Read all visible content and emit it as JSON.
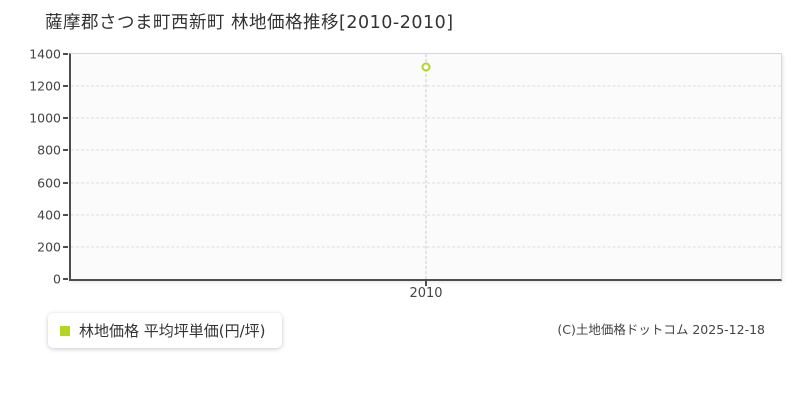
{
  "title": "薩摩郡さつま町西新町 林地価格推移[2010-2010]",
  "legend": {
    "label": "林地価格 平均坪単価(円/坪)",
    "marker_color": "#b2d51e"
  },
  "copyright": "(C)土地価格ドットコム 2025-12-18",
  "chart_data": {
    "type": "scatter",
    "title": "薩摩郡さつま町西新町 林地価格推移[2010-2010]",
    "categories": [
      "2010"
    ],
    "series": [
      {
        "name": "林地価格 平均坪単価(円/坪)",
        "values": [
          1320
        ],
        "color": "#b2d51e",
        "marker": "hollow-circle"
      }
    ],
    "ylim": [
      0,
      1400
    ],
    "yticks": [
      0,
      200,
      400,
      600,
      800,
      1000,
      1200,
      1400
    ],
    "xlabel": "",
    "ylabel": "",
    "grid": {
      "horizontal": "dashed",
      "vertical": "dashed"
    },
    "legend_position": "bottom-left",
    "style": {
      "axis_color": "#4d4d4d",
      "outer_border_color": "#d7d7d7",
      "hgrid_color": "#dedede",
      "vgrid_color": "#c9c9c9",
      "plot_background": "#fbfbfb",
      "page_background": "#ffffff"
    }
  }
}
